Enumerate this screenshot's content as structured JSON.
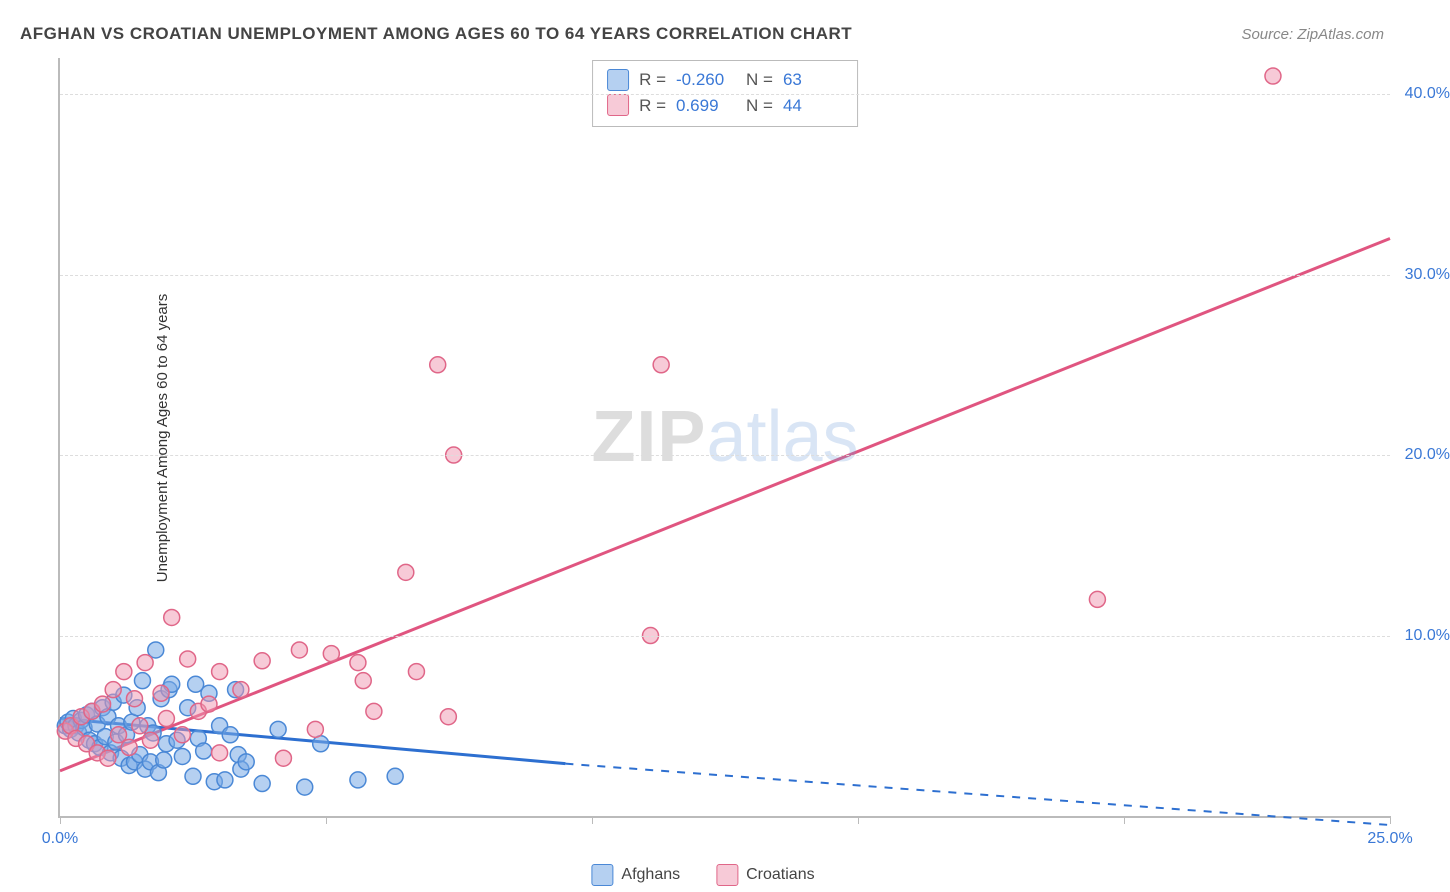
{
  "title": "AFGHAN VS CROATIAN UNEMPLOYMENT AMONG AGES 60 TO 64 YEARS CORRELATION CHART",
  "source": "Source: ZipAtlas.com",
  "y_axis_label": "Unemployment Among Ages 60 to 64 years",
  "watermark": {
    "zip": "ZIP",
    "atlas": "atlas"
  },
  "colors": {
    "blue_fill": "rgba(120,170,230,0.55)",
    "blue_stroke": "#4a88d6",
    "pink_fill": "rgba(240,150,175,0.50)",
    "pink_stroke": "#e06688",
    "blue_line": "#2d6fd0",
    "pink_line": "#e05580",
    "tick_label": "#3a78d6",
    "grid": "#dddddd"
  },
  "stats": [
    {
      "swatch_fill": "rgba(120,170,230,0.55)",
      "swatch_stroke": "#4a88d6",
      "r_label": "R =",
      "r": "-0.260",
      "n_label": "N =",
      "n": "63"
    },
    {
      "swatch_fill": "rgba(240,150,175,0.50)",
      "swatch_stroke": "#e06688",
      "r_label": "R =",
      "r": " 0.699",
      "n_label": "N =",
      "n": "44"
    }
  ],
  "legend": [
    {
      "swatch_fill": "rgba(120,170,230,0.55)",
      "swatch_stroke": "#4a88d6",
      "label": "Afghans"
    },
    {
      "swatch_fill": "rgba(240,150,175,0.50)",
      "swatch_stroke": "#e06688",
      "label": "Croatians"
    }
  ],
  "chart": {
    "type": "scatter",
    "xlim": [
      0,
      25
    ],
    "ylim": [
      0,
      42
    ],
    "x_ticks": [
      0,
      5,
      10,
      15,
      20,
      25
    ],
    "x_tick_labels": {
      "0": "0.0%",
      "25": "25.0%"
    },
    "y_ticks": [
      10,
      20,
      30,
      40
    ],
    "y_tick_labels": {
      "10": "10.0%",
      "20": "20.0%",
      "30": "30.0%",
      "40": "40.0%"
    },
    "marker_radius": 8,
    "series": [
      {
        "name": "Afghans",
        "fill": "rgba(120,170,230,0.55)",
        "stroke": "#4a88d6",
        "trend": {
          "x1": 0,
          "y1": 5.4,
          "x2": 9.5,
          "y2": 2.9,
          "dash_to_x": 25,
          "dash_to_y": -0.5,
          "color": "#2d6fd0",
          "width": 3
        },
        "points": [
          [
            0.1,
            5.0
          ],
          [
            0.15,
            5.2
          ],
          [
            0.2,
            4.8
          ],
          [
            0.25,
            5.4
          ],
          [
            0.3,
            5.0
          ],
          [
            0.35,
            4.6
          ],
          [
            0.4,
            5.3
          ],
          [
            0.45,
            4.9
          ],
          [
            0.5,
            5.6
          ],
          [
            0.55,
            4.2
          ],
          [
            0.6,
            5.8
          ],
          [
            0.65,
            4.0
          ],
          [
            0.7,
            5.1
          ],
          [
            0.75,
            3.8
          ],
          [
            0.8,
            6.0
          ],
          [
            0.85,
            4.4
          ],
          [
            0.9,
            5.5
          ],
          [
            0.95,
            3.5
          ],
          [
            1.0,
            6.3
          ],
          [
            1.05,
            4.1
          ],
          [
            1.1,
            5.0
          ],
          [
            1.15,
            3.2
          ],
          [
            1.2,
            6.7
          ],
          [
            1.25,
            4.5
          ],
          [
            1.3,
            2.8
          ],
          [
            1.35,
            5.2
          ],
          [
            1.4,
            3.0
          ],
          [
            1.45,
            6.0
          ],
          [
            1.5,
            3.4
          ],
          [
            1.55,
            7.5
          ],
          [
            1.6,
            2.6
          ],
          [
            1.65,
            5.0
          ],
          [
            1.7,
            3.0
          ],
          [
            1.75,
            4.6
          ],
          [
            1.8,
            9.2
          ],
          [
            1.85,
            2.4
          ],
          [
            1.9,
            6.5
          ],
          [
            1.95,
            3.1
          ],
          [
            2.0,
            4.0
          ],
          [
            2.05,
            7.0
          ],
          [
            2.1,
            7.3
          ],
          [
            2.2,
            4.2
          ],
          [
            2.3,
            3.3
          ],
          [
            2.4,
            6.0
          ],
          [
            2.5,
            2.2
          ],
          [
            2.55,
            7.3
          ],
          [
            2.6,
            4.3
          ],
          [
            2.7,
            3.6
          ],
          [
            2.8,
            6.8
          ],
          [
            2.9,
            1.9
          ],
          [
            3.0,
            5.0
          ],
          [
            3.1,
            2.0
          ],
          [
            3.2,
            4.5
          ],
          [
            3.3,
            7.0
          ],
          [
            3.35,
            3.4
          ],
          [
            3.4,
            2.6
          ],
          [
            3.5,
            3.0
          ],
          [
            3.8,
            1.8
          ],
          [
            4.1,
            4.8
          ],
          [
            4.6,
            1.6
          ],
          [
            4.9,
            4.0
          ],
          [
            5.6,
            2.0
          ],
          [
            6.3,
            2.2
          ]
        ]
      },
      {
        "name": "Croatians",
        "fill": "rgba(240,150,175,0.50)",
        "stroke": "#e06688",
        "trend": {
          "x1": 0,
          "y1": 2.5,
          "x2": 25,
          "y2": 32.0,
          "color": "#e05580",
          "width": 3
        },
        "points": [
          [
            0.1,
            4.7
          ],
          [
            0.2,
            5.0
          ],
          [
            0.3,
            4.3
          ],
          [
            0.4,
            5.5
          ],
          [
            0.5,
            4.0
          ],
          [
            0.6,
            5.8
          ],
          [
            0.7,
            3.5
          ],
          [
            0.8,
            6.2
          ],
          [
            0.9,
            3.2
          ],
          [
            1.0,
            7.0
          ],
          [
            1.1,
            4.5
          ],
          [
            1.2,
            8.0
          ],
          [
            1.3,
            3.8
          ],
          [
            1.4,
            6.5
          ],
          [
            1.5,
            5.0
          ],
          [
            1.6,
            8.5
          ],
          [
            1.7,
            4.2
          ],
          [
            1.9,
            6.8
          ],
          [
            2.0,
            5.4
          ],
          [
            2.1,
            11.0
          ],
          [
            2.3,
            4.5
          ],
          [
            2.4,
            8.7
          ],
          [
            2.6,
            5.8
          ],
          [
            2.8,
            6.2
          ],
          [
            3.0,
            3.5
          ],
          [
            3.0,
            8.0
          ],
          [
            3.4,
            7.0
          ],
          [
            3.8,
            8.6
          ],
          [
            4.2,
            3.2
          ],
          [
            4.5,
            9.2
          ],
          [
            4.8,
            4.8
          ],
          [
            5.1,
            9.0
          ],
          [
            5.6,
            8.5
          ],
          [
            5.7,
            7.5
          ],
          [
            5.9,
            5.8
          ],
          [
            6.5,
            13.5
          ],
          [
            6.7,
            8.0
          ],
          [
            7.1,
            25.0
          ],
          [
            7.3,
            5.5
          ],
          [
            7.4,
            20.0
          ],
          [
            11.1,
            10.0
          ],
          [
            11.3,
            25.0
          ],
          [
            19.5,
            12.0
          ],
          [
            22.8,
            41.0
          ]
        ]
      }
    ]
  }
}
